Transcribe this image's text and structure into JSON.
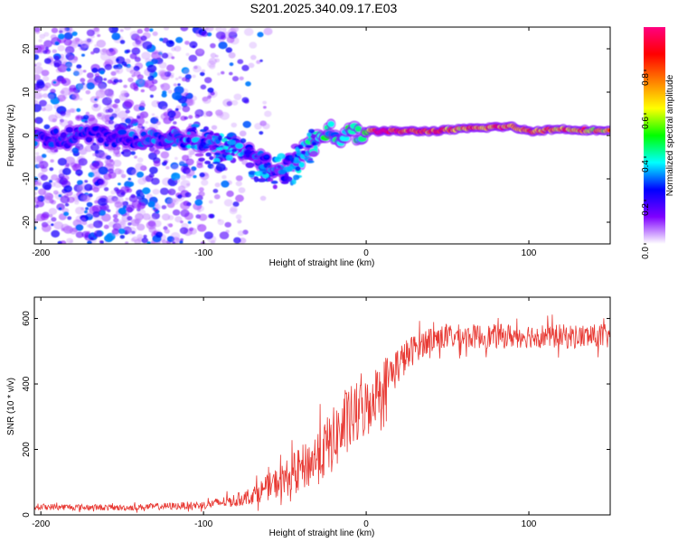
{
  "title": "S201.2025.340.09.17.E03",
  "chart_data": [
    {
      "type": "heatmap",
      "name": "spectrogram",
      "xlabel": "Height of straight line (km)",
      "ylabel": "Frequency (Hz)",
      "xlim": [
        -204,
        150
      ],
      "ylim": [
        -25,
        25
      ],
      "xticks": [
        -200,
        -100,
        0,
        100
      ],
      "xtick_labels": [
        "-200",
        "-100",
        "0",
        "100"
      ],
      "yticks": [
        -20,
        -10,
        0,
        10,
        20
      ],
      "ytick_labels": [
        "-20",
        "-10",
        "0",
        "10",
        "20"
      ],
      "colorbar": {
        "label": "Normalized spectral amplitude",
        "range": [
          0,
          1
        ],
        "ticks": [
          0.0,
          0.2,
          0.4,
          0.6,
          0.8
        ],
        "tick_labels": [
          "0.0",
          "0.2",
          "0.4",
          "0.6",
          "0.8"
        ],
        "colors": [
          "#ffffff",
          "#7f00ff",
          "#0000ff",
          "#00ffff",
          "#00ff00",
          "#ffff00",
          "#ff8000",
          "#ff0000",
          "#ff0080"
        ]
      },
      "ridge": {
        "x": [
          -204,
          -190,
          -175,
          -160,
          -140,
          -120,
          -100,
          -90,
          -80,
          -70,
          -60,
          -50,
          -45,
          -40,
          -35,
          -30,
          -25,
          -20,
          -15,
          -10,
          -5,
          0,
          5,
          10,
          20,
          40,
          60,
          80,
          90,
          100,
          120,
          150
        ],
        "y": [
          0,
          -1,
          0.5,
          0,
          -0.5,
          0,
          -1,
          -3,
          -3,
          -5,
          -7,
          -8,
          -6,
          -5,
          -2,
          -1.5,
          0,
          1,
          0,
          2,
          0,
          1,
          1,
          1,
          1,
          1,
          1.5,
          2,
          2,
          1,
          1.5,
          1
        ],
        "amplitude": [
          0.3,
          0.25,
          0.3,
          0.25,
          0.3,
          0.3,
          0.35,
          0.35,
          0.35,
          0.3,
          0.3,
          0.3,
          0.35,
          0.35,
          0.4,
          0.4,
          0.45,
          0.4,
          0.45,
          0.45,
          0.5,
          0.6,
          0.9,
          0.95,
          0.95,
          0.85,
          0.8,
          0.9,
          0.85,
          0.85,
          0.8,
          0.75
        ]
      },
      "noise": {
        "x_range": [
          -204,
          -60
        ],
        "y_range": [
          -25,
          25
        ],
        "amplitude_max": 0.25
      }
    },
    {
      "type": "line",
      "name": "snr",
      "xlabel": "Height of straight line (km)",
      "ylabel": "SNR (10 * v/v)",
      "xlim": [
        -204,
        150
      ],
      "ylim": [
        0,
        665
      ],
      "xticks": [
        -200,
        -100,
        0,
        100
      ],
      "xtick_labels": [
        "-200",
        "-100",
        "0",
        "100"
      ],
      "yticks": [
        0,
        200,
        400,
        600
      ],
      "ytick_labels": [
        "0",
        "200",
        "400",
        "600"
      ],
      "color": "#e83a34",
      "envelope": {
        "x": [
          -204,
          -150,
          -100,
          -80,
          -70,
          -60,
          -50,
          -40,
          -30,
          -20,
          -10,
          0,
          10,
          20,
          30,
          40,
          60,
          80,
          100,
          120,
          150
        ],
        "mean": [
          25,
          22,
          30,
          45,
          60,
          85,
          110,
          140,
          175,
          230,
          290,
          330,
          400,
          460,
          510,
          540,
          545,
          545,
          548,
          545,
          545
        ],
        "spread": [
          20,
          18,
          25,
          40,
          55,
          80,
          110,
          140,
          170,
          200,
          210,
          180,
          160,
          120,
          90,
          80,
          75,
          75,
          75,
          75,
          75
        ]
      }
    }
  ]
}
